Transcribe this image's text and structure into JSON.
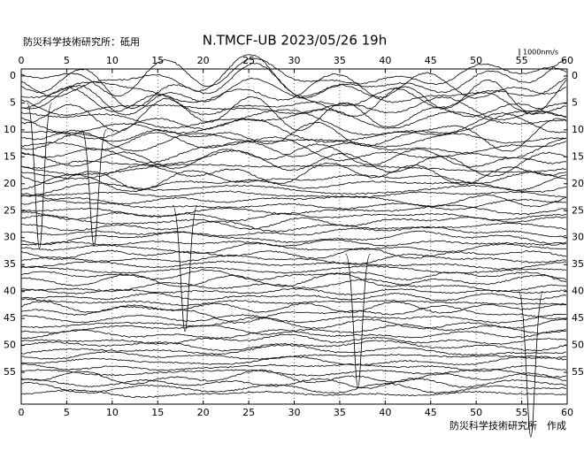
{
  "chart_data": {
    "type": "seismogram",
    "title": "N.TMCF-UB  2023/05/26  19h",
    "station_label": "防災科学技術研究所：砥用",
    "scale_label": "1000nm/s",
    "footer": "防災科学技術研究所　作成",
    "xlim": [
      0,
      60
    ],
    "xticks": [
      0,
      5,
      10,
      15,
      20,
      25,
      30,
      35,
      40,
      45,
      50,
      55,
      60
    ],
    "ylim": [
      -1.3,
      60.9
    ],
    "yticks": [
      0,
      5,
      10,
      15,
      20,
      25,
      30,
      35,
      40,
      45,
      50,
      55
    ],
    "grid": true,
    "color": "#000000"
  }
}
